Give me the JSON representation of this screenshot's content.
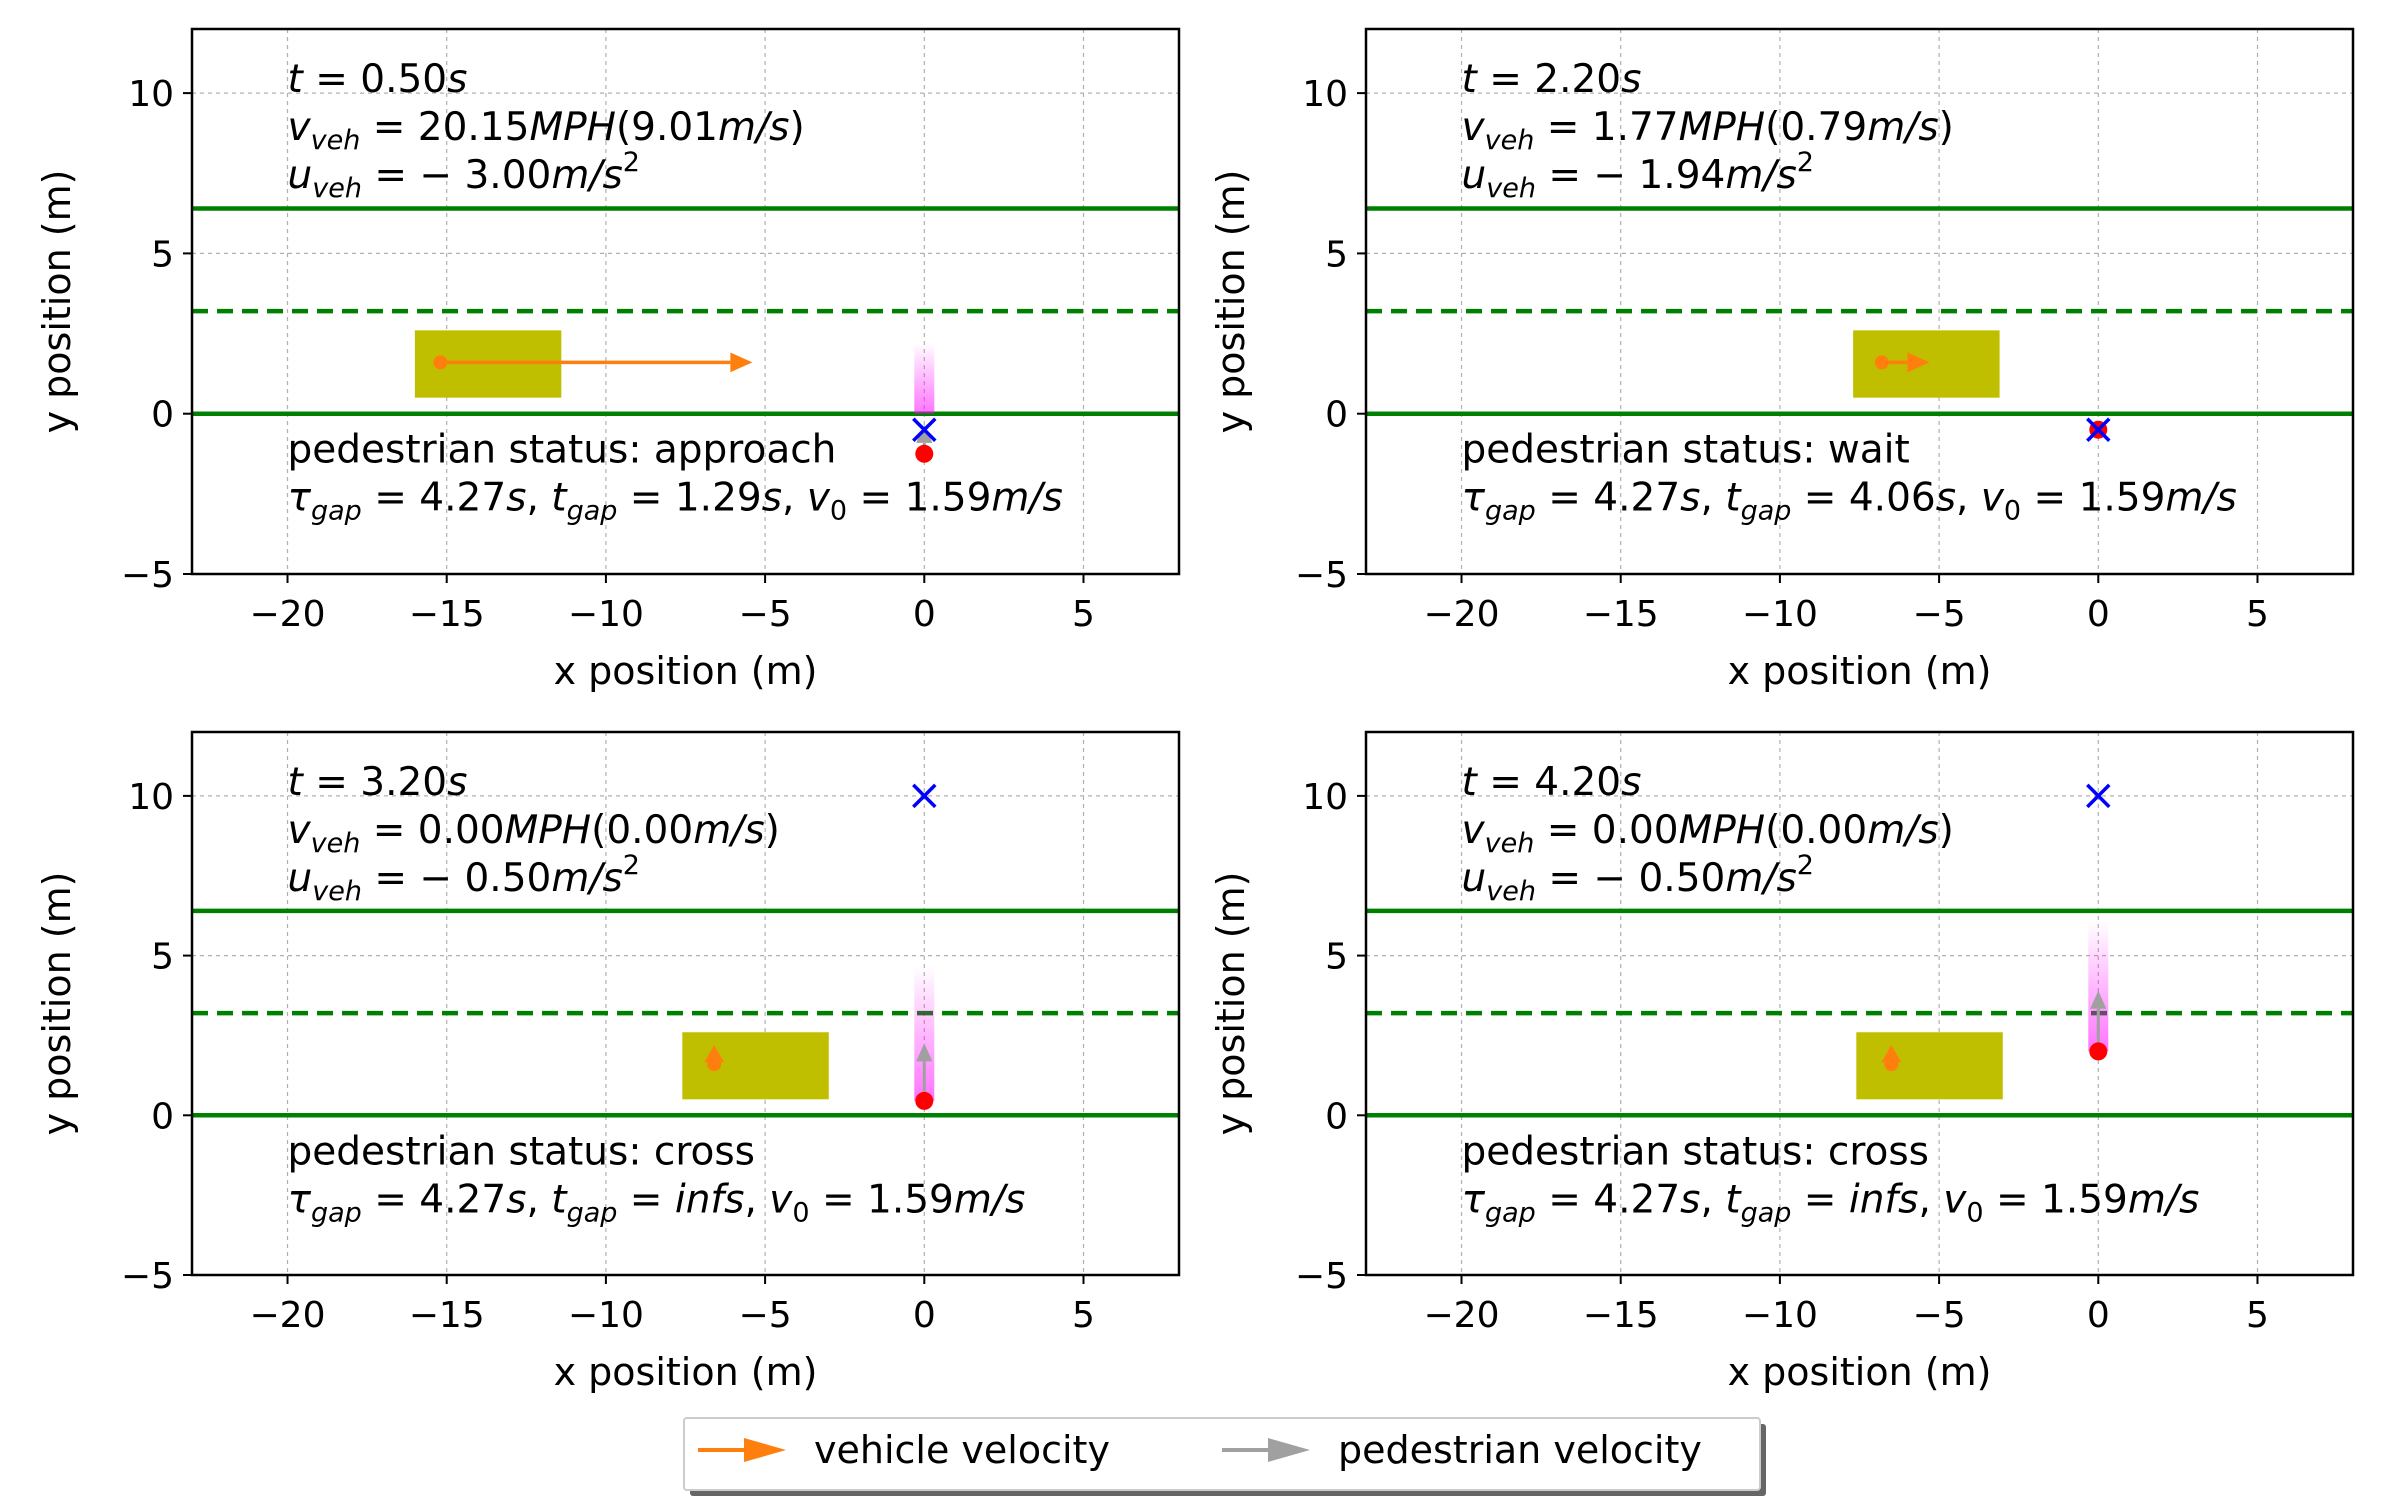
{
  "chart_data": [
    {
      "type": "scatter",
      "xlabel": "x position (m)",
      "ylabel": "y position (m)",
      "xlim": [
        -23,
        8
      ],
      "ylim": [
        -5,
        12
      ],
      "xticks": [
        -20,
        -15,
        -10,
        -5,
        0,
        5
      ],
      "yticks": [
        -5,
        0,
        5,
        10
      ],
      "grid": true,
      "road_lines": [
        {
          "y": 0,
          "style": "solid"
        },
        {
          "y": 3.2,
          "style": "dashed"
        },
        {
          "y": 6.4,
          "style": "solid"
        }
      ],
      "vehicle": {
        "x_min": -16,
        "x_max": -11.4,
        "y_min": 0.5,
        "y_max": 2.6,
        "cx": -15.2,
        "cy": 1.6
      },
      "vehicle_velocity": {
        "dx": 9.8,
        "dy": 0
      },
      "pedestrian": {
        "x": 0,
        "y": -1.25
      },
      "pedestrian_velocity": {
        "dx": 0,
        "dy": 0.9
      },
      "pedestrian_trail": [
        0,
        2.2
      ],
      "target": {
        "x": 0,
        "y": -0.5
      },
      "info": {
        "t": "0.50",
        "v_mph": "20.15",
        "v_ms": "9.01",
        "u": "− 3.00",
        "status": "pedestrian status: approach",
        "tau_gap": "4.27",
        "t_gap": "1.29",
        "v0": "1.59"
      }
    },
    {
      "type": "scatter",
      "xlabel": "x position (m)",
      "ylabel": "y position (m)",
      "xlim": [
        -23,
        8
      ],
      "ylim": [
        -5,
        12
      ],
      "xticks": [
        -20,
        -15,
        -10,
        -5,
        0,
        5
      ],
      "yticks": [
        -5,
        0,
        5,
        10
      ],
      "grid": true,
      "road_lines": [
        {
          "y": 0,
          "style": "solid"
        },
        {
          "y": 3.2,
          "style": "dashed"
        },
        {
          "y": 6.4,
          "style": "solid"
        }
      ],
      "vehicle": {
        "x_min": -7.7,
        "x_max": -3.1,
        "y_min": 0.5,
        "y_max": 2.6,
        "cx": -6.8,
        "cy": 1.6
      },
      "vehicle_velocity": {
        "dx": 1.5,
        "dy": 0
      },
      "pedestrian": {
        "x": 0,
        "y": -0.5
      },
      "pedestrian_velocity": {
        "dx": 0,
        "dy": 0
      },
      "pedestrian_trail": null,
      "target": {
        "x": 0,
        "y": -0.5
      },
      "info": {
        "t": "2.20",
        "v_mph": "1.77",
        "v_ms": "0.79",
        "u": "− 1.94",
        "status": "pedestrian status: wait",
        "tau_gap": "4.27",
        "t_gap": "4.06",
        "v0": "1.59"
      }
    },
    {
      "type": "scatter",
      "xlabel": "x position (m)",
      "ylabel": "y position (m)",
      "xlim": [
        -23,
        8
      ],
      "ylim": [
        -5,
        12
      ],
      "xticks": [
        -20,
        -15,
        -10,
        -5,
        0,
        5
      ],
      "yticks": [
        -5,
        0,
        5,
        10
      ],
      "grid": true,
      "road_lines": [
        {
          "y": 0,
          "style": "solid"
        },
        {
          "y": 3.2,
          "style": "dashed"
        },
        {
          "y": 6.4,
          "style": "solid"
        }
      ],
      "vehicle": {
        "x_min": -7.6,
        "x_max": -3,
        "y_min": 0.5,
        "y_max": 2.6,
        "cx": -6.6,
        "cy": 1.6
      },
      "vehicle_velocity": {
        "dx": 0,
        "dy": 0.6
      },
      "pedestrian": {
        "x": 0,
        "y": 0.45
      },
      "pedestrian_velocity": {
        "dx": 0,
        "dy": 1.8
      },
      "pedestrian_trail": [
        0.45,
        4.7
      ],
      "target": {
        "x": 0,
        "y": 10
      },
      "info": {
        "t": "3.20",
        "v_mph": "0.00",
        "v_ms": "0.00",
        "u": "− 0.50",
        "status": "pedestrian status: cross",
        "tau_gap": "4.27",
        "t_gap": "infs",
        "v0": "1.59"
      }
    },
    {
      "type": "scatter",
      "xlabel": "x position (m)",
      "ylabel": "y position (m)",
      "xlim": [
        -23,
        8
      ],
      "ylim": [
        -5,
        12
      ],
      "xticks": [
        -20,
        -15,
        -10,
        -5,
        0,
        5
      ],
      "yticks": [
        -5,
        0,
        5,
        10
      ],
      "grid": true,
      "road_lines": [
        {
          "y": 0,
          "style": "solid"
        },
        {
          "y": 3.2,
          "style": "dashed"
        },
        {
          "y": 6.4,
          "style": "solid"
        }
      ],
      "vehicle": {
        "x_min": -7.6,
        "x_max": -3,
        "y_min": 0.5,
        "y_max": 2.6,
        "cx": -6.5,
        "cy": 1.6
      },
      "vehicle_velocity": {
        "dx": 0,
        "dy": 0.6
      },
      "pedestrian": {
        "x": 0,
        "y": 2
      },
      "pedestrian_velocity": {
        "dx": 0,
        "dy": 1.9
      },
      "pedestrian_trail": [
        2,
        6.1
      ],
      "target": {
        "x": 0,
        "y": 10
      },
      "info": {
        "t": "4.20",
        "v_mph": "0.00",
        "v_ms": "0.00",
        "u": "− 0.50",
        "status": "pedestrian status: cross",
        "tau_gap": "4.27",
        "t_gap": "infs",
        "v0": "1.59"
      }
    }
  ],
  "legend": {
    "placement": "bottom-center",
    "entries": [
      {
        "label": "vehicle velocity",
        "color": "#ff7f0e"
      },
      {
        "label": "pedestrian velocity",
        "color": "#a0a0a0"
      }
    ]
  },
  "colors": {
    "road": "#008000",
    "vehicle_body": "#bfbf00",
    "vehicle_arrow": "#ff7f0e",
    "pedestrian": "#ff0000",
    "target": "#0000ff",
    "trail": "#ff00ff",
    "ped_arrow": "#a0a0a0"
  }
}
